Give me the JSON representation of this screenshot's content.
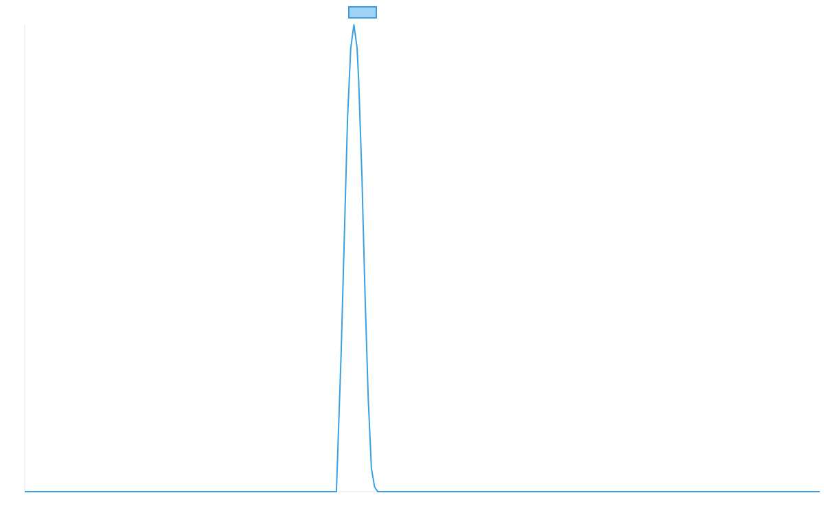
{
  "chart_data": {
    "type": "line",
    "title": "",
    "xlabel": "",
    "ylabel": "",
    "grid": false,
    "legend_position": "top-center",
    "ylim": [
      0,
      1
    ],
    "xlim": [
      0,
      1
    ],
    "series": [
      {
        "name": "",
        "color": "#3a9fe0",
        "fill_color": "#9fd3f5",
        "x": [
          0,
          0.392,
          0.398,
          0.402,
          0.406,
          0.41,
          0.414,
          0.418,
          0.42,
          0.424,
          0.428,
          0.432,
          0.436,
          0.44,
          0.444,
          0.452,
          1
        ],
        "y": [
          0,
          0,
          0.3,
          0.55,
          0.8,
          0.95,
          1.0,
          0.95,
          0.88,
          0.68,
          0.42,
          0.2,
          0.05,
          0.01,
          0,
          0,
          0
        ]
      }
    ]
  }
}
